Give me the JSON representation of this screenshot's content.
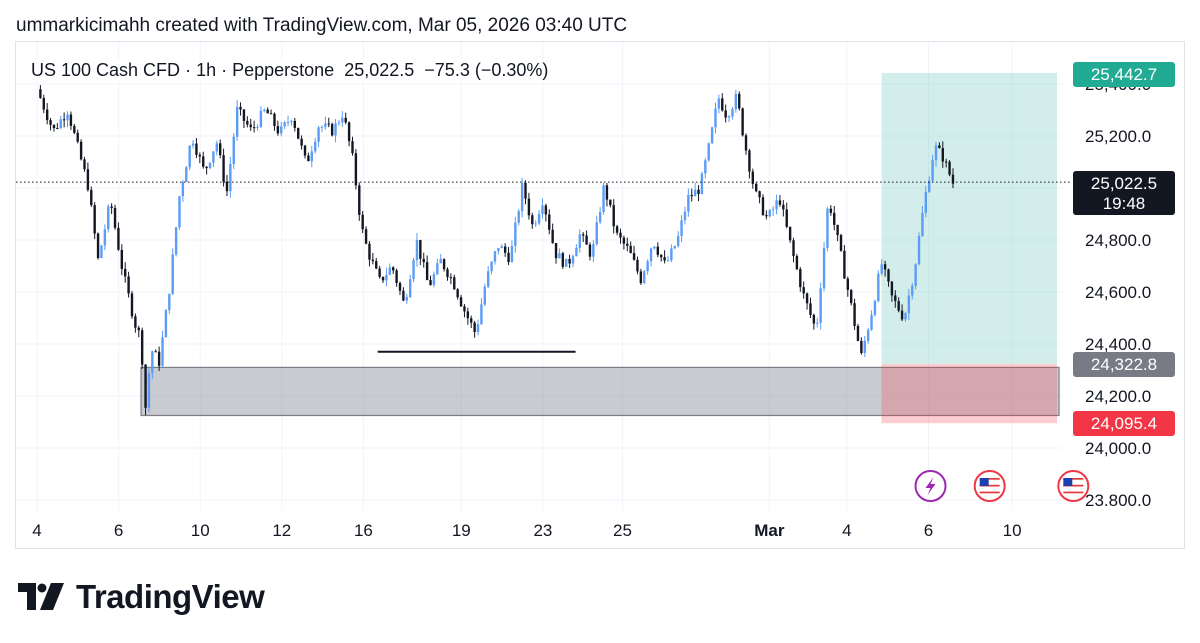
{
  "header": {
    "credit": "ummarkicimahh created with TradingView.com, Mar 05, 2026 03:40 UTC"
  },
  "symbol_line": {
    "symbol": "US 100 Cash CFD",
    "interval": "1h",
    "broker": "Pepperstone",
    "last": "25,022.5",
    "change": "−75.3",
    "change_pct": "(−0.30%)"
  },
  "price_tags": {
    "target": {
      "label": "25,442.7",
      "color": "#22ab94"
    },
    "current": {
      "label": "25,022.5",
      "countdown": "19:48",
      "color": "#131722"
    },
    "entry": {
      "label": "24,322.8",
      "color": "#787b86"
    },
    "stop": {
      "label": "24,095.4",
      "color": "#f23645"
    }
  },
  "brand": {
    "name": "TradingView"
  },
  "colors": {
    "up": "#5b9cf6",
    "down": "#131722",
    "profit_zone": "#22ab94",
    "loss_zone": "#f23645",
    "demand_zone": "#9598a1"
  },
  "chart_data": {
    "type": "candlestick",
    "interval": "1h",
    "y_axis": {
      "min": 23750,
      "max": 25550,
      "ticks": [
        23800,
        24000,
        24200,
        24400,
        24600,
        24800,
        25200,
        25400
      ],
      "tick_labels": [
        "23.800.0",
        "24,000.0",
        "24,200.0",
        "24,400.0",
        "24,600.0",
        "24,800.0",
        "25,200.0",
        "25,400.0"
      ]
    },
    "x_axis": {
      "labels": [
        "4",
        "6",
        "10",
        "12",
        "16",
        "19",
        "23",
        "25",
        "Mar",
        "4",
        "6",
        "10"
      ],
      "bold_label": "Mar"
    },
    "price_path": [
      [
        0.0,
        25380
      ],
      [
        0.8,
        25220
      ],
      [
        1.5,
        25300
      ],
      [
        2.5,
        25010
      ],
      [
        3.0,
        24720
      ],
      [
        3.6,
        24950
      ],
      [
        4.2,
        24680
      ],
      [
        4.8,
        24480
      ],
      [
        5.1,
        24420
      ],
      [
        5.3,
        24140
      ],
      [
        5.6,
        24380
      ],
      [
        6.0,
        24330
      ],
      [
        6.5,
        24620
      ],
      [
        7.0,
        24980
      ],
      [
        7.6,
        25200
      ],
      [
        8.2,
        25060
      ],
      [
        8.8,
        25180
      ],
      [
        9.3,
        24980
      ],
      [
        9.8,
        25300
      ],
      [
        10.5,
        25220
      ],
      [
        11.2,
        25300
      ],
      [
        11.9,
        25210
      ],
      [
        12.5,
        25280
      ],
      [
        13.2,
        25090
      ],
      [
        13.8,
        25240
      ],
      [
        14.5,
        25220
      ],
      [
        15.0,
        25290
      ],
      [
        15.5,
        25100
      ],
      [
        15.9,
        24850
      ],
      [
        16.2,
        24760
      ],
      [
        16.8,
        24640
      ],
      [
        17.4,
        24700
      ],
      [
        18.0,
        24550
      ],
      [
        18.6,
        24800
      ],
      [
        19.2,
        24620
      ],
      [
        19.8,
        24720
      ],
      [
        20.4,
        24640
      ],
      [
        21.0,
        24520
      ],
      [
        21.5,
        24440
      ],
      [
        22.0,
        24640
      ],
      [
        22.6,
        24780
      ],
      [
        23.2,
        24730
      ],
      [
        23.8,
        25010
      ],
      [
        24.3,
        24850
      ],
      [
        24.8,
        24960
      ],
      [
        25.4,
        24750
      ],
      [
        26.0,
        24700
      ],
      [
        26.6,
        24820
      ],
      [
        27.2,
        24740
      ],
      [
        27.8,
        25010
      ],
      [
        28.4,
        24820
      ],
      [
        29.0,
        24760
      ],
      [
        29.6,
        24650
      ],
      [
        30.2,
        24800
      ],
      [
        30.8,
        24700
      ],
      [
        31.4,
        24800
      ],
      [
        31.9,
        24960
      ],
      [
        32.5,
        25000
      ],
      [
        33.0,
        25180
      ],
      [
        33.4,
        25350
      ],
      [
        33.8,
        25280
      ],
      [
        34.3,
        25350
      ],
      [
        34.7,
        25170
      ],
      [
        35.2,
        24980
      ],
      [
        35.8,
        24880
      ],
      [
        36.4,
        24960
      ],
      [
        37.0,
        24760
      ],
      [
        37.6,
        24580
      ],
      [
        38.2,
        24450
      ],
      [
        38.8,
        24960
      ],
      [
        39.3,
        24780
      ],
      [
        39.9,
        24550
      ],
      [
        40.4,
        24350
      ],
      [
        40.9,
        24520
      ],
      [
        41.4,
        24710
      ],
      [
        41.9,
        24580
      ],
      [
        42.5,
        24500
      ],
      [
        43.0,
        24680
      ],
      [
        43.5,
        24950
      ],
      [
        44.0,
        25160
      ],
      [
        44.4,
        25120
      ],
      [
        44.7,
        25060
      ],
      [
        44.9,
        25020
      ]
    ],
    "candle_count": 270,
    "current_price": 25022.5,
    "levels": [
      {
        "name": "support-line",
        "price": 24370,
        "x_start": 16.7,
        "x_end": 26.4
      }
    ],
    "zones": [
      {
        "name": "demand-zone",
        "top": 24310,
        "bottom": 24125,
        "x_start": 5.1,
        "x_end": 50.1
      },
      {
        "name": "long-target",
        "top": 25442.7,
        "bottom": 24322.8,
        "x_start": 41.4,
        "x_end": 50.0
      },
      {
        "name": "long-stop",
        "top": 24322.8,
        "bottom": 24095.4,
        "x_start": 41.4,
        "x_end": 50.0
      }
    ],
    "events": [
      {
        "name": "lightning-event-icon",
        "x": 43.8
      },
      {
        "name": "us-flag-event-icon",
        "x": 46.7
      },
      {
        "name": "us-flag-event-icon",
        "x": 50.8
      }
    ]
  }
}
